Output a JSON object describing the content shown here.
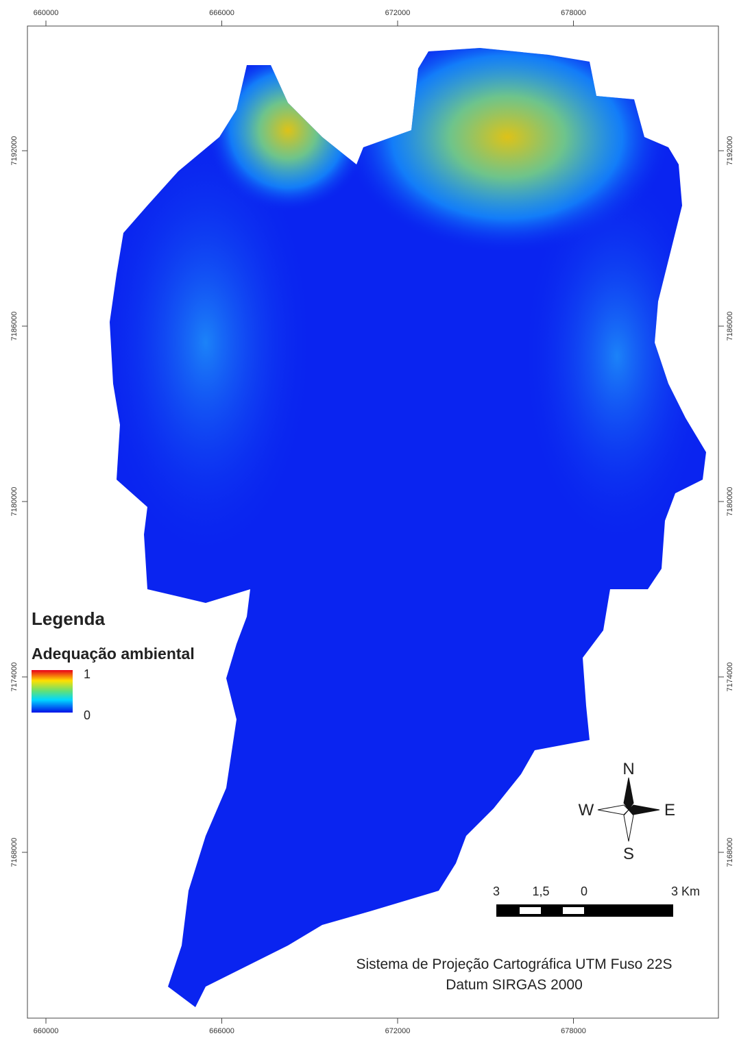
{
  "map": {
    "xticks": [
      660000,
      666000,
      672000,
      678000
    ],
    "yticks": [
      7192000,
      7186000,
      7180000,
      7174000,
      7168000
    ]
  },
  "legend": {
    "title": "Legenda",
    "subtitle": "Adequação ambiental",
    "max_label": "1",
    "min_label": "0"
  },
  "compass": {
    "north": "N",
    "west": "W",
    "east": "E",
    "south": "S"
  },
  "scale_bar": {
    "labels": [
      "3",
      "1,5",
      "0",
      "3 Km"
    ]
  },
  "projection": [
    "Sistema de Projeção Cartográfica UTM Fuso 22S",
    "Datum SIRGAS 2000"
  ]
}
